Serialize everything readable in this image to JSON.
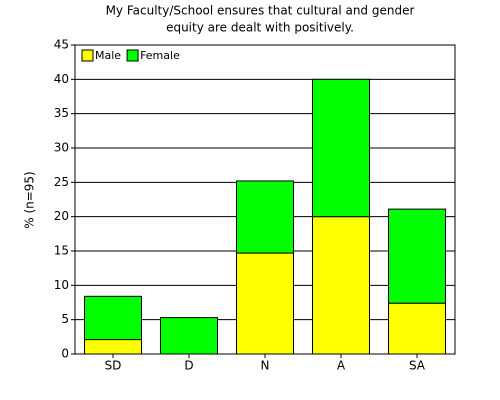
{
  "chart_data": {
    "type": "stacked_bar",
    "title": [
      "My Faculty/School ensures that cultural and gender",
      "equity are dealt with positively."
    ],
    "y_label": "% (n=95)",
    "categories": [
      "SD",
      "D",
      "N",
      "A",
      "SA"
    ],
    "series": [
      {
        "name": "Male",
        "color": "#ffff00",
        "values": [
          2.1,
          0,
          14.7,
          20.0,
          7.4
        ]
      },
      {
        "name": "Female",
        "color": "#00ff00",
        "values": [
          6.3,
          5.3,
          10.5,
          20.0,
          13.7
        ]
      }
    ],
    "ylim": [
      0,
      45
    ],
    "yticks": [
      0,
      5,
      10,
      15,
      20,
      25,
      30,
      35,
      40,
      45
    ],
    "grid": true,
    "legend": "top-left"
  }
}
